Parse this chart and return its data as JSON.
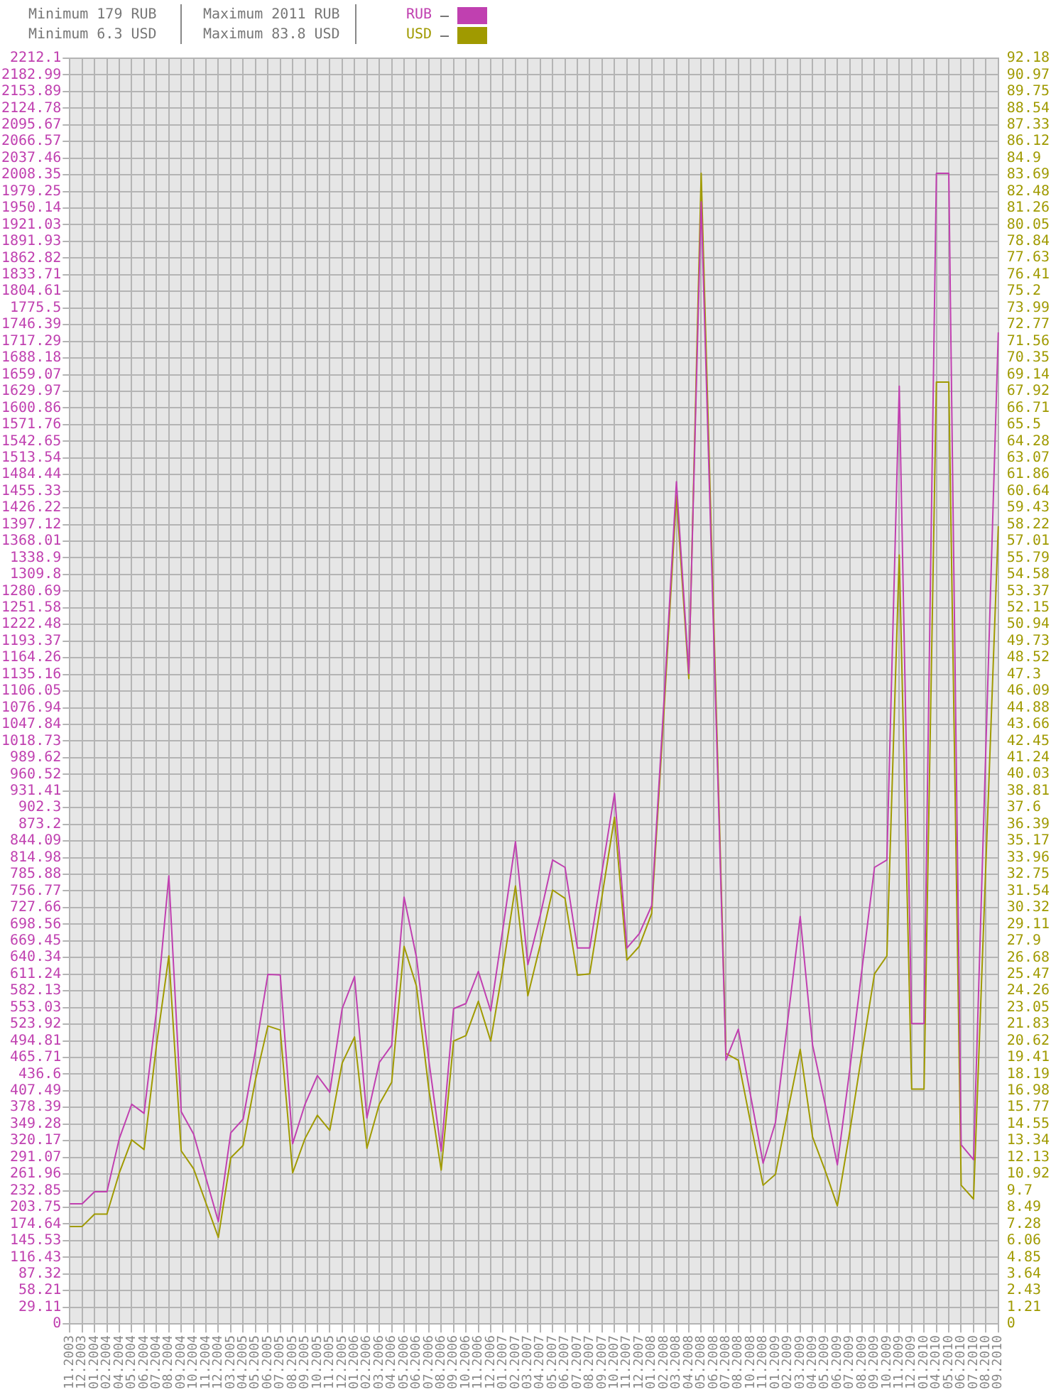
{
  "chart_data": {
    "type": "line",
    "annotations": [
      "Minimum 179 RUB",
      "Minimum 6.3 USD",
      "Maximum 2011 RUB",
      "Maximum 83.8 USD"
    ],
    "categories": [
      "11.2003",
      "12.2003",
      "01.2004",
      "02.2004",
      "04.2004",
      "05.2004",
      "06.2004",
      "07.2004",
      "08.2004",
      "09.2004",
      "10.2004",
      "11.2004",
      "12.2004",
      "03.2005",
      "04.2005",
      "05.2005",
      "06.2005",
      "07.2005",
      "08.2005",
      "09.2005",
      "10.2005",
      "11.2005",
      "12.2005",
      "01.2006",
      "02.2006",
      "03.2006",
      "04.2006",
      "05.2006",
      "06.2006",
      "07.2006",
      "08.2006",
      "09.2006",
      "10.2006",
      "11.2006",
      "12.2006",
      "01.2007",
      "02.2007",
      "03.2007",
      "04.2007",
      "05.2007",
      "06.2007",
      "07.2007",
      "08.2007",
      "09.2007",
      "10.2007",
      "11.2007",
      "12.2007",
      "01.2008",
      "02.2008",
      "03.2008",
      "04.2008",
      "05.2008",
      "06.2008",
      "07.2008",
      "08.2008",
      "10.2008",
      "11.2008",
      "01.2009",
      "02.2009",
      "03.2009",
      "04.2009",
      "05.2009",
      "06.2009",
      "07.2009",
      "08.2009",
      "09.2009",
      "10.2009",
      "11.2009",
      "12.2009",
      "01.2010",
      "04.2010",
      "05.2010",
      "06.2010",
      "07.2010",
      "08.2010",
      "09.2010"
    ],
    "series": [
      {
        "name": "RUB",
        "color": "#c040b0",
        "values": [
          210,
          210,
          231,
          231,
          324,
          384,
          368,
          547,
          783,
          371,
          332,
          255,
          179,
          334,
          358,
          478,
          611,
          610,
          315,
          384,
          434,
          405,
          551,
          607,
          360,
          457,
          487,
          746,
          641,
          461,
          302,
          551,
          560,
          616,
          547,
          693,
          843,
          628,
          714,
          811,
          798,
          657,
          657,
          792,
          927,
          657,
          682,
          731,
          1091,
          1472,
          1137,
          1961,
          1212,
          461,
          515,
          398,
          281,
          352,
          532,
          712,
          487,
          385,
          278,
          444,
          622,
          798,
          811,
          1639,
          525,
          525,
          2011,
          2011,
          313,
          287,
          1011,
          1733
        ]
      },
      {
        "name": "USD",
        "color": "#a09a00",
        "axis": "y2",
        "values": [
          7.1,
          7.1,
          8.0,
          8.0,
          11.0,
          13.4,
          12.7,
          20.3,
          26.8,
          12.6,
          11.3,
          8.8,
          6.3,
          12.1,
          13.0,
          17.8,
          21.7,
          21.4,
          11.0,
          13.5,
          15.2,
          14.1,
          19.0,
          20.9,
          12.8,
          16.0,
          17.6,
          27.5,
          24.6,
          17.1,
          11.2,
          20.6,
          21.0,
          23.5,
          20.6,
          26.0,
          31.9,
          23.9,
          27.6,
          31.6,
          31.0,
          25.4,
          25.5,
          31.2,
          36.9,
          26.5,
          27.5,
          29.9,
          44.7,
          60.3,
          47.0,
          83.8,
          51.8,
          19.7,
          19.2,
          14.6,
          10.1,
          10.9,
          15.5,
          20.0,
          13.6,
          11.2,
          8.6,
          14.0,
          19.8,
          25.5,
          26.8,
          56.0,
          17.1,
          17.1,
          68.6,
          68.6,
          10.1,
          9.1,
          33.6,
          58.1
        ]
      }
    ],
    "ylim": [
      0,
      2212.1
    ],
    "yticks": [
      0,
      29.11,
      58.21,
      87.32,
      116.43,
      145.53,
      174.64,
      203.75,
      232.85,
      261.96,
      291.07,
      320.17,
      349.28,
      378.39,
      407.49,
      436.6,
      465.71,
      494.81,
      523.92,
      553.03,
      582.13,
      611.24,
      640.34,
      669.45,
      698.56,
      727.66,
      756.77,
      785.88,
      814.98,
      844.09,
      873.2,
      902.3,
      931.41,
      960.52,
      989.62,
      1018.73,
      1047.84,
      1076.94,
      1106.05,
      1135.16,
      1164.26,
      1193.37,
      1222.48,
      1251.58,
      1280.69,
      1309.8,
      1338.9,
      1368.01,
      1397.12,
      1426.22,
      1455.33,
      1484.44,
      1513.54,
      1542.65,
      1571.76,
      1600.86,
      1629.97,
      1659.07,
      1688.18,
      1717.29,
      1746.39,
      1775.5,
      1804.61,
      1833.71,
      1862.82,
      1891.93,
      1921.03,
      1950.14,
      1979.25,
      2008.35,
      2037.46,
      2066.57,
      2095.67,
      2124.78,
      2153.89,
      2182.99,
      2212.1
    ],
    "y2lim": [
      0,
      92.18
    ],
    "y2ticks": [
      0,
      1.21,
      2.43,
      3.64,
      4.85,
      6.06,
      7.28,
      8.49,
      9.7,
      10.92,
      12.13,
      13.34,
      14.55,
      15.77,
      16.98,
      18.19,
      19.41,
      20.62,
      21.83,
      23.05,
      24.26,
      25.47,
      26.68,
      27.9,
      29.11,
      30.32,
      31.54,
      32.75,
      33.96,
      35.17,
      36.39,
      37.6,
      38.81,
      40.03,
      41.24,
      42.45,
      43.66,
      44.88,
      46.09,
      47.3,
      48.52,
      49.73,
      50.94,
      52.15,
      53.37,
      54.58,
      55.79,
      57.01,
      58.22,
      59.43,
      60.64,
      61.86,
      63.07,
      64.28,
      65.5,
      66.71,
      67.92,
      69.14,
      70.35,
      71.56,
      72.77,
      73.99,
      75.2,
      76.41,
      77.63,
      78.84,
      80.05,
      81.26,
      82.48,
      83.69,
      84.9,
      86.12,
      87.33,
      88.54,
      89.75,
      90.97,
      92.18
    ],
    "grid": true,
    "legend": "top left",
    "marker": "none",
    "line_style": "solid"
  }
}
